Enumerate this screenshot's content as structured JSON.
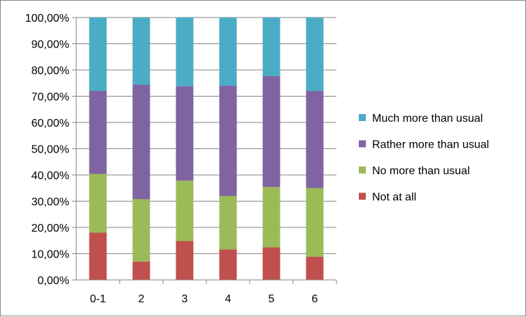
{
  "chart_data": {
    "type": "bar",
    "stacked": true,
    "categories": [
      "0-1",
      "2",
      "3",
      "4",
      "5",
      "6"
    ],
    "series": [
      {
        "name": "Not at all",
        "color": "#c0504d",
        "values": [
          18.0,
          7.0,
          14.8,
          11.6,
          12.4,
          8.8
        ]
      },
      {
        "name": "No more than usual",
        "color": "#9bbb59",
        "values": [
          22.4,
          23.8,
          23.0,
          20.4,
          23.0,
          26.2
        ]
      },
      {
        "name": "Rather more than usual",
        "color": "#8064a2",
        "values": [
          31.6,
          43.6,
          36.0,
          42.0,
          42.2,
          37.0
        ]
      },
      {
        "name": "Much more than usual",
        "color": "#4bacc6",
        "values": [
          28.0,
          25.6,
          26.2,
          26.0,
          22.4,
          28.0
        ]
      }
    ],
    "ylim": [
      0,
      100
    ],
    "yticks": [
      "0,00%",
      "10,00%",
      "20,00%",
      "30,00%",
      "40,00%",
      "50,00%",
      "60,00%",
      "70,00%",
      "80,00%",
      "90,00%",
      "100,00%"
    ],
    "grid": true,
    "legend_position": "right",
    "xlabel": "",
    "ylabel": ""
  }
}
